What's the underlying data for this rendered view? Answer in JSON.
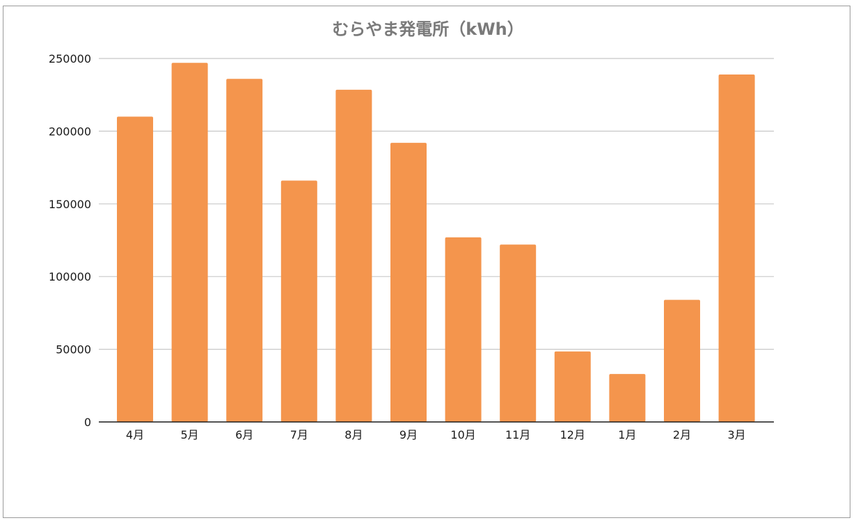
{
  "chart_data": {
    "type": "bar",
    "title": "むらやま発電所（kWh）",
    "xlabel": "",
    "ylabel": "",
    "categories": [
      "4月",
      "5月",
      "6月",
      "7月",
      "8月",
      "9月",
      "10月",
      "11月",
      "12月",
      "1月",
      "2月",
      "3月"
    ],
    "values": [
      210000,
      247000,
      236000,
      166000,
      228500,
      192000,
      127000,
      122000,
      48500,
      33000,
      84000,
      239000
    ],
    "ylim": [
      0,
      250000
    ],
    "yticks": [
      "0",
      "50000",
      "100000",
      "150000",
      "200000",
      "250000"
    ],
    "grid": true,
    "bar_color": "#f4954d",
    "grid_color": "#c8c8c8",
    "axis_color": "#1a1a1a"
  }
}
